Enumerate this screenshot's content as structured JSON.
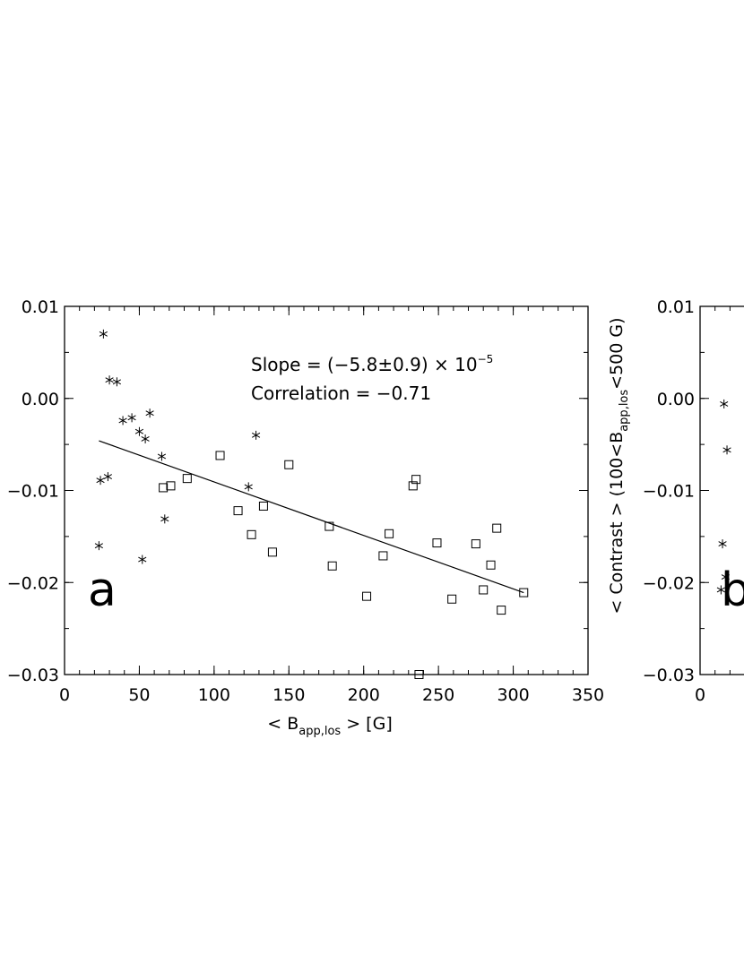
{
  "chart_data": [
    {
      "type": "scatter",
      "panel_label": "a",
      "xlabel_main": "< B",
      "xlabel_sub": "app,los",
      "xlabel_tail": " > [G]",
      "xlim": [
        0,
        350
      ],
      "ylim": [
        -0.03,
        0.01
      ],
      "x_ticks": [
        {
          "value": 0,
          "label": "0"
        },
        {
          "value": 50,
          "label": "50"
        },
        {
          "value": 100,
          "label": "100"
        },
        {
          "value": 150,
          "label": "150"
        },
        {
          "value": 200,
          "label": "200"
        },
        {
          "value": 250,
          "label": "250"
        },
        {
          "value": 300,
          "label": "300"
        },
        {
          "value": 350,
          "label": "350"
        }
      ],
      "y_ticks": [
        {
          "value": 0.01,
          "label": "0.01"
        },
        {
          "value": 0.0,
          "label": "0.00"
        },
        {
          "value": -0.01,
          "label": "−0.01"
        },
        {
          "value": -0.02,
          "label": "−0.02"
        },
        {
          "value": -0.03,
          "label": "−0.03"
        }
      ],
      "annotation_slope": "Slope = (−5.8±0.9) × 10",
      "annotation_slope_exp": "−5",
      "annotation_correlation": "Correlation = −0.71",
      "fit_line": {
        "x": [
          23,
          307
        ],
        "y": [
          -0.0046,
          -0.0211
        ]
      },
      "series": [
        {
          "marker": "asterisk",
          "points": [
            [
              26,
              0.007
            ],
            [
              30,
              0.002
            ],
            [
              35,
              0.0018
            ],
            [
              39,
              -0.0024
            ],
            [
              45,
              -0.0021
            ],
            [
              50,
              -0.0036
            ],
            [
              54,
              -0.0044
            ],
            [
              57,
              -0.0016
            ],
            [
              65,
              -0.0063
            ],
            [
              24,
              -0.0089
            ],
            [
              29,
              -0.0085
            ],
            [
              123,
              -0.0096
            ],
            [
              128,
              -0.004
            ],
            [
              67,
              -0.0131
            ],
            [
              23,
              -0.016
            ],
            [
              52,
              -0.0175
            ]
          ]
        },
        {
          "marker": "square",
          "points": [
            [
              66,
              -0.0097
            ],
            [
              71,
              -0.0095
            ],
            [
              82,
              -0.0087
            ],
            [
              104,
              -0.0062
            ],
            [
              116,
              -0.0122
            ],
            [
              125,
              -0.0148
            ],
            [
              133,
              -0.0117
            ],
            [
              139,
              -0.0167
            ],
            [
              150,
              -0.0072
            ],
            [
              177,
              -0.0139
            ],
            [
              179,
              -0.0182
            ],
            [
              202,
              -0.0215
            ],
            [
              213,
              -0.0171
            ],
            [
              217,
              -0.0147
            ],
            [
              233,
              -0.0095
            ],
            [
              235,
              -0.0088
            ],
            [
              237,
              -0.03
            ],
            [
              249,
              -0.0157
            ],
            [
              259,
              -0.0218
            ],
            [
              275,
              -0.0158
            ],
            [
              280,
              -0.0208
            ],
            [
              285,
              -0.0181
            ],
            [
              289,
              -0.0141
            ],
            [
              292,
              -0.023
            ],
            [
              307,
              -0.0211
            ]
          ]
        }
      ]
    },
    {
      "type": "scatter",
      "panel_label": "b",
      "ylabel_main": "< Contrast > (100<B",
      "ylabel_sub": "app,los",
      "ylabel_tail": "<500 G)",
      "xlim": [
        0,
        350
      ],
      "ylim": [
        -0.03,
        0.01
      ],
      "x_ticks": [
        {
          "value": 0,
          "label": "0"
        }
      ],
      "y_ticks": [
        {
          "value": 0.01,
          "label": "0.01"
        },
        {
          "value": 0.0,
          "label": "0.00"
        },
        {
          "value": -0.01,
          "label": "−0.01"
        },
        {
          "value": -0.02,
          "label": "−0.02"
        },
        {
          "value": -0.03,
          "label": "−0.03"
        }
      ],
      "series": [
        {
          "marker": "asterisk",
          "points": [
            [
              16,
              -0.0006
            ],
            [
              18,
              -0.0056
            ],
            [
              15,
              -0.0158
            ],
            [
              17,
              -0.0194
            ],
            [
              14,
              -0.0208
            ]
          ]
        }
      ]
    }
  ]
}
